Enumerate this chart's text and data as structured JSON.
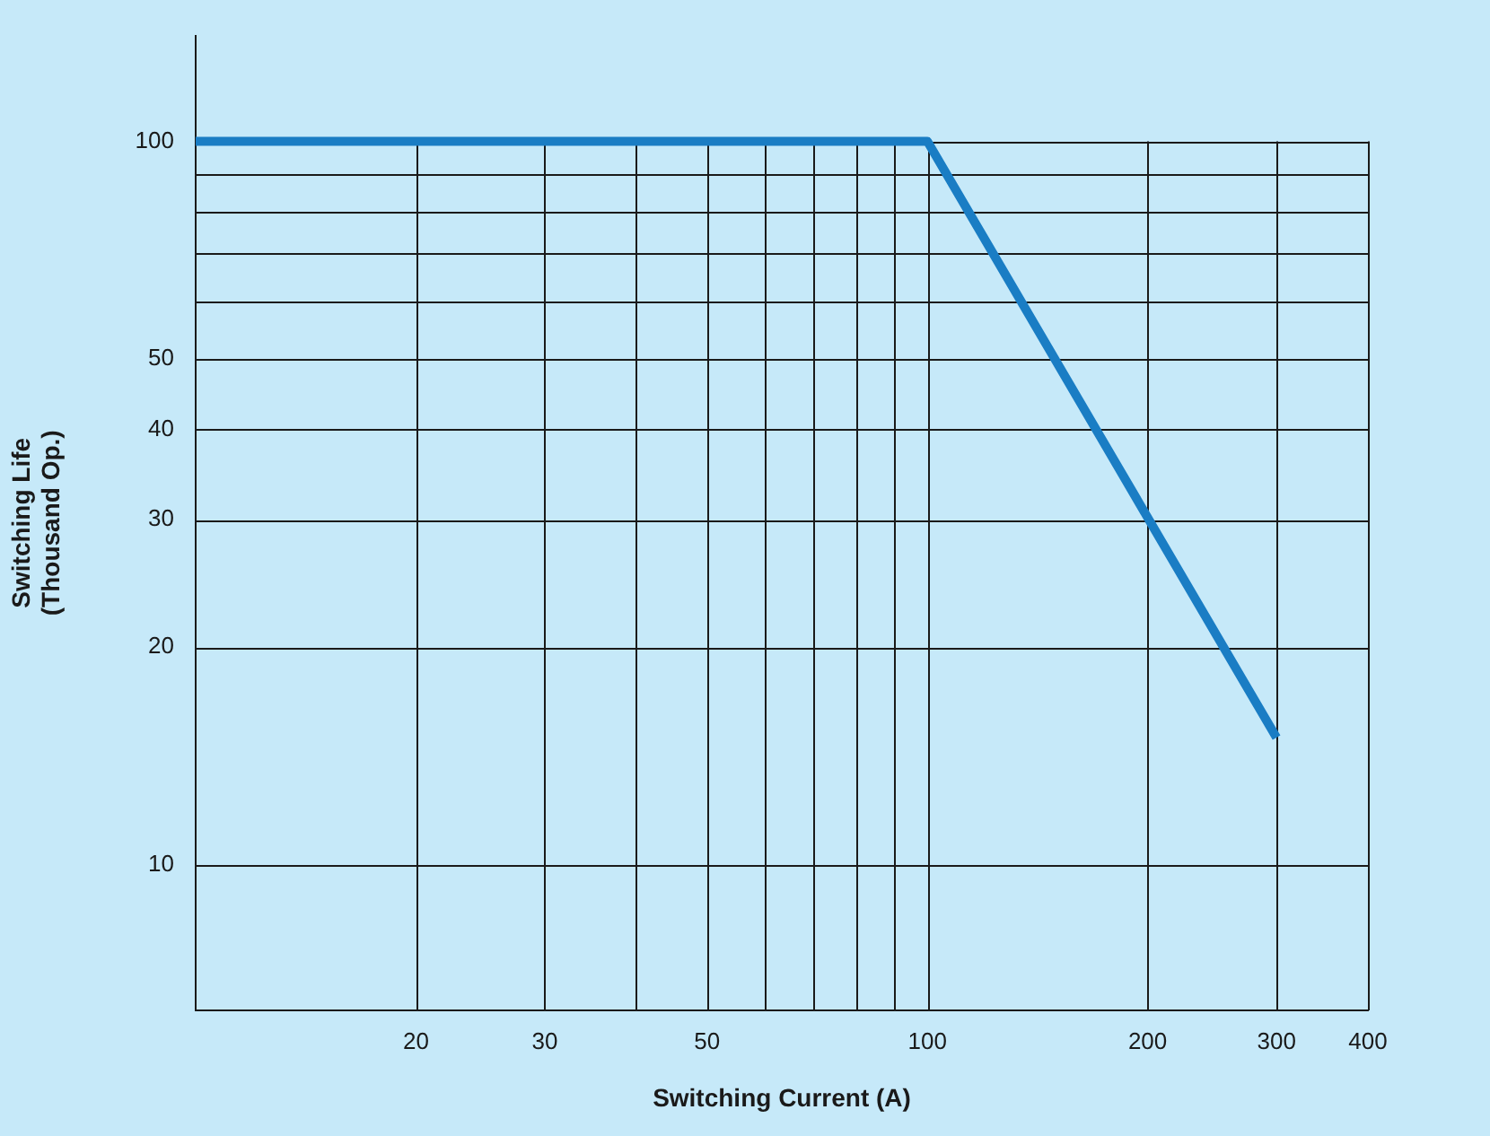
{
  "chart_data": {
    "type": "line",
    "xlabel": "Switching Current (A)",
    "ylabel": "Switching Life\n(Thousand Op.)",
    "log": "xy",
    "grid": true,
    "legend": false,
    "marker": "none",
    "xlim": [
      10,
      400
    ],
    "ylim": [
      6.3,
      140
    ],
    "xticks": [
      20,
      30,
      {
        "value": 40,
        "label": null
      },
      50,
      {
        "value": 60,
        "label": null
      },
      {
        "value": 70,
        "label": null
      },
      {
        "value": 80,
        "label": null
      },
      {
        "value": 90,
        "label": null
      },
      100,
      200,
      300,
      400
    ],
    "yticks": [
      10,
      20,
      30,
      40,
      50,
      {
        "value": 60,
        "label": null
      },
      {
        "value": 70,
        "label": null
      },
      {
        "value": 80,
        "label": null
      },
      {
        "value": 90,
        "label": null
      },
      100
    ],
    "series": [
      {
        "color": "#1a7dc4",
        "x": [
          10,
          100,
          300
        ],
        "values": [
          100,
          100,
          15
        ]
      }
    ]
  }
}
